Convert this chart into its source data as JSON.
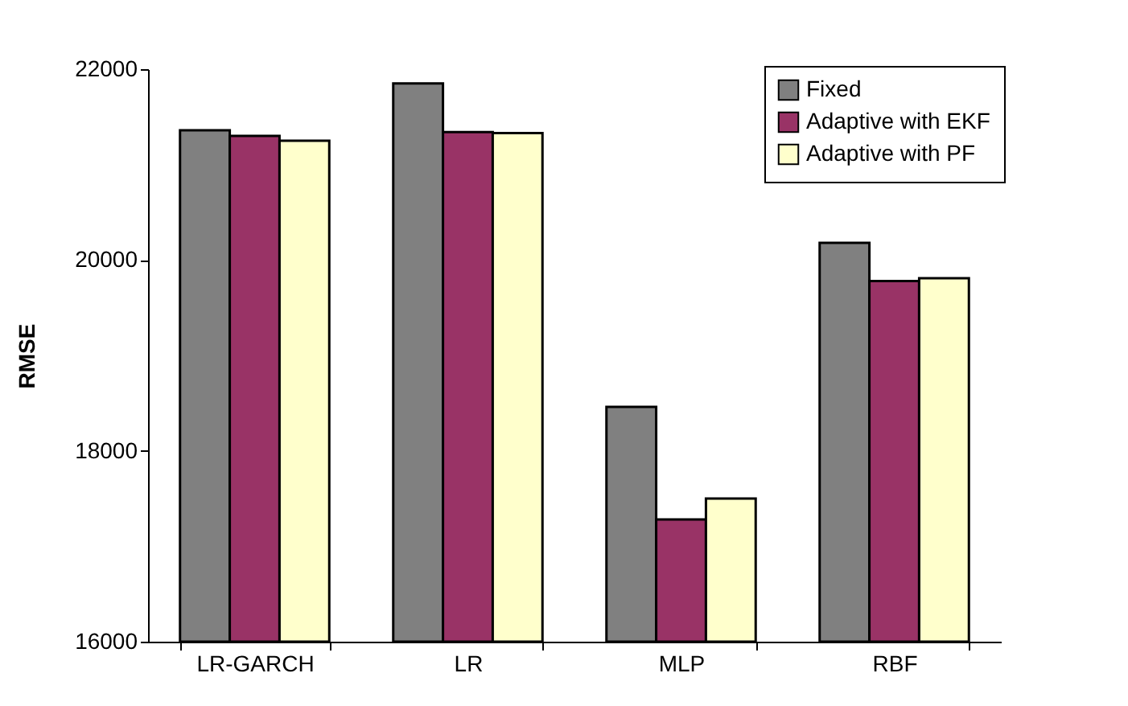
{
  "chart_data": {
    "type": "bar",
    "ylabel": "RMSE",
    "categories": [
      "LR-GARCH",
      "LR",
      "MLP",
      "RBF"
    ],
    "series": [
      {
        "name": "Fixed",
        "color": "#808080",
        "values": [
          21360,
          21850,
          18460,
          20180
        ]
      },
      {
        "name": "Adaptive with EKF",
        "color": "#993366",
        "values": [
          21300,
          21340,
          17280,
          19780
        ]
      },
      {
        "name": "Adaptive with PF",
        "color": "#ffffcc",
        "values": [
          21250,
          21330,
          17500,
          19810
        ]
      }
    ],
    "ylim": [
      16000,
      22000
    ],
    "yticks": [
      16000,
      18000,
      20000,
      22000
    ],
    "grid": false,
    "legend": "top right"
  }
}
